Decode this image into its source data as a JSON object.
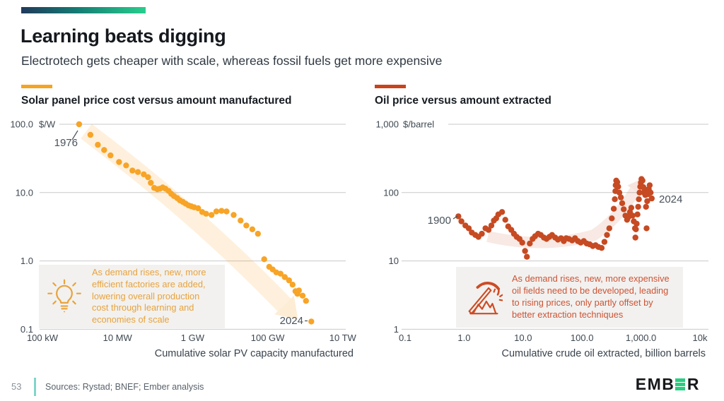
{
  "slide": {
    "title": "Learning beats digging",
    "subtitle": "Electrotech gets cheaper with scale, whereas fossil fuels get more expensive",
    "page_number": "53",
    "sources": "Sources: Rystad; BNEF; Ember analysis",
    "brand": {
      "prefix": "EMB",
      "green_letter": "E",
      "suffix": "R"
    },
    "colors": {
      "gradient_start": "#20395B",
      "gradient_mid": "#147C74",
      "gradient_end": "#28CE8D",
      "teal_divider": "#7FD6C8",
      "logo_green": "#2BCD82",
      "gridline": "#C9C9C9"
    }
  },
  "chart_data": [
    {
      "id": "solar",
      "type": "scatter",
      "title": "Solar panel price cost versus amount manufactured",
      "accent_color": "#F6A41F",
      "dot_color": "#F7A427",
      "unit": "$/W",
      "xlabel": "Cumulative solar PV capacity manufactured",
      "xlim": [
        100000.0,
        10000000000000.0
      ],
      "ylim": [
        0.1,
        100
      ],
      "x_ticks": [
        {
          "label": "100 kW",
          "value": 100000.0
        },
        {
          "label": "10 MW",
          "value": 10000000.0
        },
        {
          "label": "1 GW",
          "value": 1000000000.0
        },
        {
          "label": "100 GW",
          "value": 100000000000.0
        },
        {
          "label": "10 TW",
          "value": 10000000000000.0
        }
      ],
      "y_ticks": [
        {
          "label": "100.0",
          "value": 100
        },
        {
          "label": "10.0",
          "value": 10
        },
        {
          "label": "1.0",
          "value": 1
        },
        {
          "label": "0.1",
          "value": 0.1
        }
      ],
      "start_label": "1976",
      "end_label": "2024",
      "annotation": {
        "icon": "lightbulb-icon",
        "text": "As demand rises, new, more efficient factories are added, lowering overall production cost through learning and economies of scale"
      },
      "points": [
        [
          950000.0,
          100
        ],
        [
          1900000.0,
          70
        ],
        [
          3000000.0,
          50
        ],
        [
          4400000.0,
          42
        ],
        [
          6500000.0,
          35
        ],
        [
          11000000.0,
          28
        ],
        [
          17000000.0,
          25
        ],
        [
          25000000.0,
          21
        ],
        [
          35000000.0,
          20
        ],
        [
          50000000.0,
          18.5
        ],
        [
          65000000.0,
          16.8
        ],
        [
          77000000.0,
          13.9
        ],
        [
          95000000.0,
          11.7
        ],
        [
          115000000.0,
          11.2
        ],
        [
          135000000.0,
          11.4
        ],
        [
          160000000.0,
          11.9
        ],
        [
          190000000.0,
          11.4
        ],
        [
          230000000.0,
          10.6
        ],
        [
          270000000.0,
          9.6
        ],
        [
          320000000.0,
          8.9
        ],
        [
          390000000.0,
          8.3
        ],
        [
          460000000.0,
          7.7
        ],
        [
          550000000.0,
          7.3
        ],
        [
          650000000.0,
          6.9
        ],
        [
          780000000.0,
          6.5
        ],
        [
          920000000.0,
          6.3
        ],
        [
          1100000000.0,
          6.1
        ],
        [
          1400000000.0,
          5.9
        ],
        [
          1800000000.0,
          5.2
        ],
        [
          2300000000.0,
          4.9
        ],
        [
          3200000000.0,
          4.7
        ],
        [
          4300000000.0,
          5.3
        ],
        [
          5900000000.0,
          5.4
        ],
        [
          8000000000.0,
          5.3
        ],
        [
          12400000000.0,
          4.7
        ],
        [
          19000000000.0,
          3.9
        ],
        [
          27000000000.0,
          3.3
        ],
        [
          39000000000.0,
          2.9
        ],
        [
          55000000000.0,
          2.5
        ],
        [
          81000000000.0,
          1.06
        ],
        [
          110000000000.0,
          0.82
        ],
        [
          136000000000.0,
          0.75
        ],
        [
          170000000000.0,
          0.68
        ],
        [
          220000000000.0,
          0.65
        ],
        [
          285000000000.0,
          0.58
        ],
        [
          370000000000.0,
          0.52
        ],
        [
          460000000000.0,
          0.45
        ],
        [
          550000000000.0,
          0.36
        ],
        [
          620000000000.0,
          0.33
        ],
        [
          680000000000.0,
          0.37
        ],
        [
          850000000000.0,
          0.31
        ],
        [
          1050000000000.0,
          0.26
        ],
        [
          1450000000000.0,
          0.13
        ]
      ]
    },
    {
      "id": "oil",
      "type": "scatter",
      "title": "Oil price versus amount extracted",
      "accent_color": "#C8431B",
      "dot_color": "#C64A22",
      "unit": "$/barrel",
      "xlabel": "Cumulative crude oil extracted, billion barrels",
      "xlim": [
        0.1,
        10000
      ],
      "ylim": [
        1,
        1000
      ],
      "x_ticks": [
        {
          "label": "0.1",
          "value": 0.1
        },
        {
          "label": "1.0",
          "value": 1
        },
        {
          "label": "10.0",
          "value": 10
        },
        {
          "label": "100.0",
          "value": 100
        },
        {
          "label": "1,000.0",
          "value": 1000
        },
        {
          "label": "10k",
          "value": 10000
        }
      ],
      "y_ticks": [
        {
          "label": "1,000",
          "value": 1000
        },
        {
          "label": "100",
          "value": 100
        },
        {
          "label": "10",
          "value": 10
        },
        {
          "label": "1",
          "value": 1
        }
      ],
      "start_label": "1900",
      "end_label": "2024",
      "annotation": {
        "icon": "pickaxe-icon",
        "text": "As demand rises, new, more expensive oil fields need to be developed, leading to rising prices, only partly offset by better extraction techniques"
      },
      "points": [
        [
          0.8,
          45
        ],
        [
          0.9,
          38
        ],
        [
          1.05,
          33
        ],
        [
          1.2,
          30
        ],
        [
          1.35,
          26
        ],
        [
          1.55,
          24
        ],
        [
          1.75,
          22.5
        ],
        [
          2.0,
          25
        ],
        [
          2.3,
          30
        ],
        [
          2.6,
          28.5
        ],
        [
          2.9,
          33
        ],
        [
          3.2,
          39
        ],
        [
          3.5,
          42
        ],
        [
          3.8,
          48
        ],
        [
          4.4,
          52
        ],
        [
          5.0,
          40
        ],
        [
          5.6,
          32
        ],
        [
          6.3,
          28.5
        ],
        [
          7.0,
          25
        ],
        [
          7.8,
          22.5
        ],
        [
          8.7,
          21
        ],
        [
          9.7,
          18.5
        ],
        [
          10.8,
          14
        ],
        [
          11.6,
          11.5
        ],
        [
          13,
          18
        ],
        [
          14.5,
          21
        ],
        [
          16,
          23
        ],
        [
          18,
          25
        ],
        [
          20,
          24
        ],
        [
          22.5,
          22
        ],
        [
          25,
          21
        ],
        [
          28,
          22.5
        ],
        [
          31,
          24
        ],
        [
          35,
          22
        ],
        [
          39,
          20.5
        ],
        [
          44,
          21.5
        ],
        [
          49,
          19.5
        ],
        [
          54,
          21.5
        ],
        [
          60,
          21
        ],
        [
          68,
          20
        ],
        [
          76,
          21.5
        ],
        [
          85,
          19.5
        ],
        [
          95,
          18.5
        ],
        [
          107,
          19.5
        ],
        [
          120,
          18
        ],
        [
          135,
          17.5
        ],
        [
          152,
          16.5
        ],
        [
          170,
          17
        ],
        [
          190,
          16
        ],
        [
          215,
          15.5
        ],
        [
          240,
          19
        ],
        [
          265,
          24
        ],
        [
          290,
          30
        ],
        [
          320,
          42
        ],
        [
          345,
          58
        ],
        [
          360,
          80
        ],
        [
          368,
          105
        ],
        [
          372,
          128
        ],
        [
          380,
          150
        ],
        [
          395,
          142
        ],
        [
          410,
          122
        ],
        [
          430,
          100
        ],
        [
          455,
          85
        ],
        [
          480,
          70
        ],
        [
          510,
          57
        ],
        [
          545,
          46
        ],
        [
          580,
          40
        ],
        [
          615,
          44
        ],
        [
          650,
          52
        ],
        [
          685,
          60
        ],
        [
          720,
          46
        ],
        [
          755,
          38
        ],
        [
          790,
          30
        ],
        [
          805,
          22
        ],
        [
          820,
          29
        ],
        [
          845,
          35
        ],
        [
          870,
          48
        ],
        [
          895,
          62
        ],
        [
          920,
          80
        ],
        [
          945,
          100
        ],
        [
          970,
          122
        ],
        [
          995,
          140
        ],
        [
          1020,
          158
        ],
        [
          1060,
          150
        ],
        [
          1095,
          120
        ],
        [
          1125,
          100
        ],
        [
          1155,
          112
        ],
        [
          1185,
          92
        ],
        [
          1215,
          62
        ],
        [
          1245,
          30
        ],
        [
          1275,
          75
        ],
        [
          1310,
          95
        ],
        [
          1355,
          112
        ],
        [
          1405,
          128
        ],
        [
          1455,
          100
        ],
        [
          1520,
          82
        ]
      ]
    }
  ]
}
